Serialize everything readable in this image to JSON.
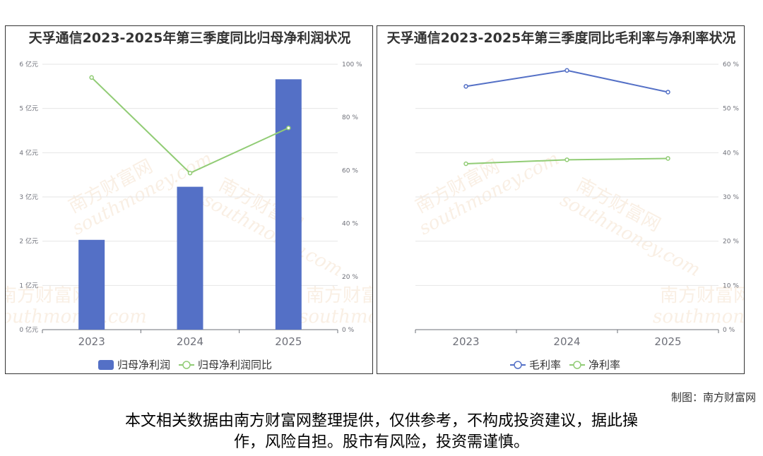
{
  "chart_data": [
    {
      "type": "bar",
      "title": "天孚通信2023-2025年第三季度同比归母净利润状况",
      "categories": [
        "2023",
        "2024",
        "2025"
      ],
      "series": [
        {
          "name": "归母净利润",
          "type": "bar",
          "axis": "left",
          "values": [
            2.03,
            3.23,
            5.66
          ],
          "color": "#5470c6"
        },
        {
          "name": "归母净利润同比",
          "type": "line",
          "axis": "right",
          "values": [
            95,
            59,
            76
          ],
          "color": "#91cc75"
        }
      ],
      "left_axis": {
        "ticks": [
          "0 亿元",
          "1 亿元",
          "2 亿元",
          "3 亿元",
          "4 亿元",
          "5 亿元",
          "6 亿元"
        ],
        "range": [
          0,
          6
        ]
      },
      "right_axis": {
        "ticks": [
          "0 %",
          "20 %",
          "40 %",
          "60 %",
          "80 %",
          "100 %"
        ],
        "range": [
          0,
          100
        ]
      },
      "grid": true,
      "legend": "bottom"
    },
    {
      "type": "line",
      "title": "天孚通信2023-2025年第三季度同比毛利率与净利率状况",
      "categories": [
        "2023",
        "2024",
        "2025"
      ],
      "series": [
        {
          "name": "毛利率",
          "type": "line",
          "values": [
            55.0,
            58.6,
            53.7
          ],
          "color": "#5470c6"
        },
        {
          "name": "净利率",
          "type": "line",
          "values": [
            37.5,
            38.4,
            38.7
          ],
          "color": "#91cc75"
        }
      ],
      "right_axis": {
        "ticks": [
          "0 %",
          "10 %",
          "20 %",
          "30 %",
          "40 %",
          "50 %",
          "60 %"
        ],
        "range": [
          0,
          60
        ]
      },
      "grid": true,
      "legend": "bottom"
    }
  ],
  "watermark": {
    "cn": "南方财富网",
    "en": "southmoney.com"
  },
  "footer": {
    "credit": "制图：南方财富网",
    "disclaimer_line1": "本文相关数据由南方财富网整理提供，仅供参考，不构成投资建议，据此操",
    "disclaimer_line2": "作，风险自担。股市有风险，投资需谨慎。"
  }
}
